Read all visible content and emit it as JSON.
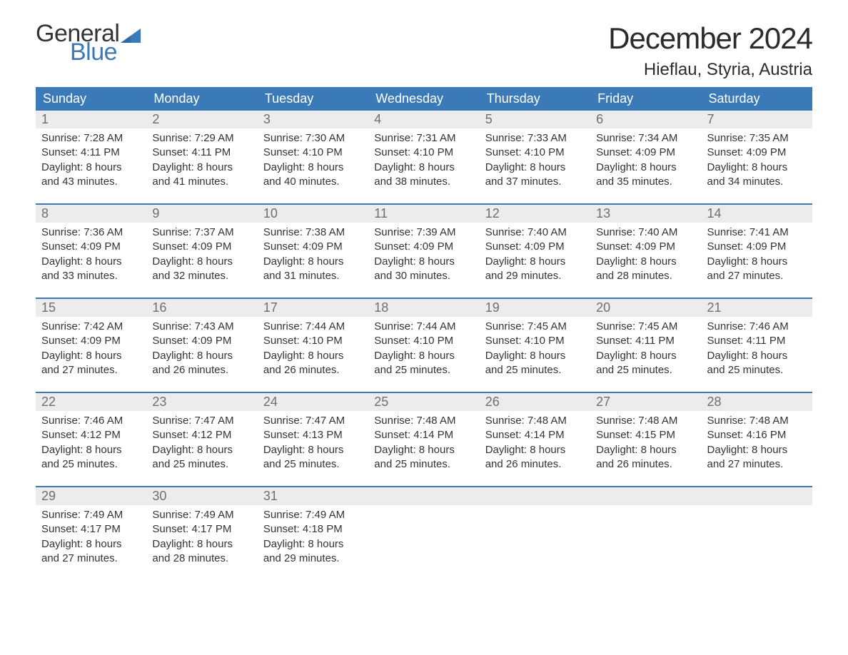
{
  "logo": {
    "general": "General",
    "blue": "Blue"
  },
  "title": "December 2024",
  "location": "Hieflau, Styria, Austria",
  "colors": {
    "header_bg": "#3a7ab8",
    "header_text": "#ffffff",
    "daynum_bg": "#ececec",
    "daynum_text": "#6f6f6f",
    "body_text": "#333333",
    "accent_border": "#3a7ab8",
    "page_bg": "#ffffff",
    "logo_blue": "#3a7ab8"
  },
  "typography": {
    "title_fontsize": 42,
    "location_fontsize": 24,
    "weekday_fontsize": 18,
    "daynum_fontsize": 18,
    "detail_fontsize": 15
  },
  "weekdays": [
    "Sunday",
    "Monday",
    "Tuesday",
    "Wednesday",
    "Thursday",
    "Friday",
    "Saturday"
  ],
  "weeks": [
    [
      {
        "num": "1",
        "sunrise": "Sunrise: 7:28 AM",
        "sunset": "Sunset: 4:11 PM",
        "day1": "Daylight: 8 hours",
        "day2": "and 43 minutes."
      },
      {
        "num": "2",
        "sunrise": "Sunrise: 7:29 AM",
        "sunset": "Sunset: 4:11 PM",
        "day1": "Daylight: 8 hours",
        "day2": "and 41 minutes."
      },
      {
        "num": "3",
        "sunrise": "Sunrise: 7:30 AM",
        "sunset": "Sunset: 4:10 PM",
        "day1": "Daylight: 8 hours",
        "day2": "and 40 minutes."
      },
      {
        "num": "4",
        "sunrise": "Sunrise: 7:31 AM",
        "sunset": "Sunset: 4:10 PM",
        "day1": "Daylight: 8 hours",
        "day2": "and 38 minutes."
      },
      {
        "num": "5",
        "sunrise": "Sunrise: 7:33 AM",
        "sunset": "Sunset: 4:10 PM",
        "day1": "Daylight: 8 hours",
        "day2": "and 37 minutes."
      },
      {
        "num": "6",
        "sunrise": "Sunrise: 7:34 AM",
        "sunset": "Sunset: 4:09 PM",
        "day1": "Daylight: 8 hours",
        "day2": "and 35 minutes."
      },
      {
        "num": "7",
        "sunrise": "Sunrise: 7:35 AM",
        "sunset": "Sunset: 4:09 PM",
        "day1": "Daylight: 8 hours",
        "day2": "and 34 minutes."
      }
    ],
    [
      {
        "num": "8",
        "sunrise": "Sunrise: 7:36 AM",
        "sunset": "Sunset: 4:09 PM",
        "day1": "Daylight: 8 hours",
        "day2": "and 33 minutes."
      },
      {
        "num": "9",
        "sunrise": "Sunrise: 7:37 AM",
        "sunset": "Sunset: 4:09 PM",
        "day1": "Daylight: 8 hours",
        "day2": "and 32 minutes."
      },
      {
        "num": "10",
        "sunrise": "Sunrise: 7:38 AM",
        "sunset": "Sunset: 4:09 PM",
        "day1": "Daylight: 8 hours",
        "day2": "and 31 minutes."
      },
      {
        "num": "11",
        "sunrise": "Sunrise: 7:39 AM",
        "sunset": "Sunset: 4:09 PM",
        "day1": "Daylight: 8 hours",
        "day2": "and 30 minutes."
      },
      {
        "num": "12",
        "sunrise": "Sunrise: 7:40 AM",
        "sunset": "Sunset: 4:09 PM",
        "day1": "Daylight: 8 hours",
        "day2": "and 29 minutes."
      },
      {
        "num": "13",
        "sunrise": "Sunrise: 7:40 AM",
        "sunset": "Sunset: 4:09 PM",
        "day1": "Daylight: 8 hours",
        "day2": "and 28 minutes."
      },
      {
        "num": "14",
        "sunrise": "Sunrise: 7:41 AM",
        "sunset": "Sunset: 4:09 PM",
        "day1": "Daylight: 8 hours",
        "day2": "and 27 minutes."
      }
    ],
    [
      {
        "num": "15",
        "sunrise": "Sunrise: 7:42 AM",
        "sunset": "Sunset: 4:09 PM",
        "day1": "Daylight: 8 hours",
        "day2": "and 27 minutes."
      },
      {
        "num": "16",
        "sunrise": "Sunrise: 7:43 AM",
        "sunset": "Sunset: 4:09 PM",
        "day1": "Daylight: 8 hours",
        "day2": "and 26 minutes."
      },
      {
        "num": "17",
        "sunrise": "Sunrise: 7:44 AM",
        "sunset": "Sunset: 4:10 PM",
        "day1": "Daylight: 8 hours",
        "day2": "and 26 minutes."
      },
      {
        "num": "18",
        "sunrise": "Sunrise: 7:44 AM",
        "sunset": "Sunset: 4:10 PM",
        "day1": "Daylight: 8 hours",
        "day2": "and 25 minutes."
      },
      {
        "num": "19",
        "sunrise": "Sunrise: 7:45 AM",
        "sunset": "Sunset: 4:10 PM",
        "day1": "Daylight: 8 hours",
        "day2": "and 25 minutes."
      },
      {
        "num": "20",
        "sunrise": "Sunrise: 7:45 AM",
        "sunset": "Sunset: 4:11 PM",
        "day1": "Daylight: 8 hours",
        "day2": "and 25 minutes."
      },
      {
        "num": "21",
        "sunrise": "Sunrise: 7:46 AM",
        "sunset": "Sunset: 4:11 PM",
        "day1": "Daylight: 8 hours",
        "day2": "and 25 minutes."
      }
    ],
    [
      {
        "num": "22",
        "sunrise": "Sunrise: 7:46 AM",
        "sunset": "Sunset: 4:12 PM",
        "day1": "Daylight: 8 hours",
        "day2": "and 25 minutes."
      },
      {
        "num": "23",
        "sunrise": "Sunrise: 7:47 AM",
        "sunset": "Sunset: 4:12 PM",
        "day1": "Daylight: 8 hours",
        "day2": "and 25 minutes."
      },
      {
        "num": "24",
        "sunrise": "Sunrise: 7:47 AM",
        "sunset": "Sunset: 4:13 PM",
        "day1": "Daylight: 8 hours",
        "day2": "and 25 minutes."
      },
      {
        "num": "25",
        "sunrise": "Sunrise: 7:48 AM",
        "sunset": "Sunset: 4:14 PM",
        "day1": "Daylight: 8 hours",
        "day2": "and 25 minutes."
      },
      {
        "num": "26",
        "sunrise": "Sunrise: 7:48 AM",
        "sunset": "Sunset: 4:14 PM",
        "day1": "Daylight: 8 hours",
        "day2": "and 26 minutes."
      },
      {
        "num": "27",
        "sunrise": "Sunrise: 7:48 AM",
        "sunset": "Sunset: 4:15 PM",
        "day1": "Daylight: 8 hours",
        "day2": "and 26 minutes."
      },
      {
        "num": "28",
        "sunrise": "Sunrise: 7:48 AM",
        "sunset": "Sunset: 4:16 PM",
        "day1": "Daylight: 8 hours",
        "day2": "and 27 minutes."
      }
    ],
    [
      {
        "num": "29",
        "sunrise": "Sunrise: 7:49 AM",
        "sunset": "Sunset: 4:17 PM",
        "day1": "Daylight: 8 hours",
        "day2": "and 27 minutes."
      },
      {
        "num": "30",
        "sunrise": "Sunrise: 7:49 AM",
        "sunset": "Sunset: 4:17 PM",
        "day1": "Daylight: 8 hours",
        "day2": "and 28 minutes."
      },
      {
        "num": "31",
        "sunrise": "Sunrise: 7:49 AM",
        "sunset": "Sunset: 4:18 PM",
        "day1": "Daylight: 8 hours",
        "day2": "and 29 minutes."
      },
      {
        "num": "",
        "sunrise": "",
        "sunset": "",
        "day1": "",
        "day2": ""
      },
      {
        "num": "",
        "sunrise": "",
        "sunset": "",
        "day1": "",
        "day2": ""
      },
      {
        "num": "",
        "sunrise": "",
        "sunset": "",
        "day1": "",
        "day2": ""
      },
      {
        "num": "",
        "sunrise": "",
        "sunset": "",
        "day1": "",
        "day2": ""
      }
    ]
  ]
}
